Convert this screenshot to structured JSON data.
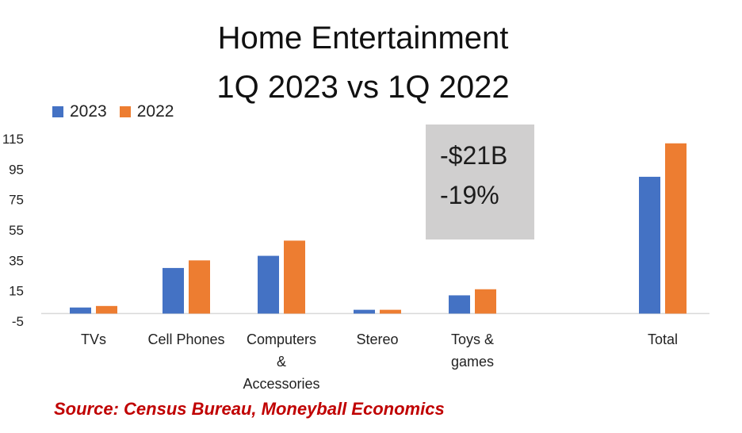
{
  "chart_data": {
    "type": "bar",
    "title": "Home Entertainment",
    "subtitle": "1Q 2023 vs 1Q 2022",
    "categories": [
      "TVs",
      "Cell Phones",
      "Computers & Accessories",
      "Stereo",
      "Toys & games",
      "Total"
    ],
    "category_lines": [
      [
        "TVs"
      ],
      [
        "Cell Phones"
      ],
      [
        "Computers",
        "&",
        "Accessories"
      ],
      [
        "Stereo"
      ],
      [
        "Toys &",
        "games"
      ],
      [
        "Total"
      ]
    ],
    "series": [
      {
        "name": "2023",
        "color": "#4472c4",
        "values": [
          4,
          30,
          38,
          2.5,
          12,
          90
        ]
      },
      {
        "name": "2022",
        "color": "#ed7d31",
        "values": [
          5,
          35,
          48,
          2.5,
          16,
          112
        ]
      }
    ],
    "ylim": [
      -5,
      115
    ],
    "yticks": [
      -5,
      15,
      35,
      55,
      75,
      95,
      115
    ],
    "ytick_labels": [
      "-5",
      "15",
      "35",
      "55",
      "75",
      "95",
      "115"
    ],
    "legend_position": "top-left",
    "grid": false,
    "xlabel": "",
    "ylabel": "",
    "annotation": {
      "lines": [
        "-$21B",
        "-19%"
      ]
    },
    "source": "Source: Census Bureau, Moneyball Economics"
  }
}
